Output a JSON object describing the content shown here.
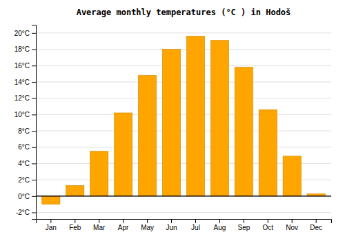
{
  "chart_data": {
    "type": "bar",
    "title": "Average monthly temperatures (°C ) in Hodoš",
    "categories": [
      "Jan",
      "Feb",
      "Mar",
      "Apr",
      "May",
      "Jun",
      "Jul",
      "Aug",
      "Sep",
      "Oct",
      "Nov",
      "Dec"
    ],
    "values": [
      -1.0,
      1.3,
      5.5,
      10.2,
      14.8,
      18.0,
      19.6,
      19.1,
      15.8,
      10.6,
      4.9,
      0.3
    ],
    "color": "#FFA500",
    "ylim": [
      -2.8,
      21.0
    ],
    "yticks": [
      {
        "value": -2,
        "label": "-2°C"
      },
      {
        "value": 0,
        "label": "0°C"
      },
      {
        "value": 2,
        "label": "2°C"
      },
      {
        "value": 4,
        "label": "4°C"
      },
      {
        "value": 6,
        "label": "6°C"
      },
      {
        "value": 8,
        "label": "8°C"
      },
      {
        "value": 10,
        "label": "10°C"
      },
      {
        "value": 12,
        "label": "12°C"
      },
      {
        "value": 14,
        "label": "14°C"
      },
      {
        "value": 16,
        "label": "16°C"
      },
      {
        "value": 18,
        "label": "18°C"
      },
      {
        "value": 20,
        "label": "20°C"
      }
    ],
    "grid": true
  }
}
